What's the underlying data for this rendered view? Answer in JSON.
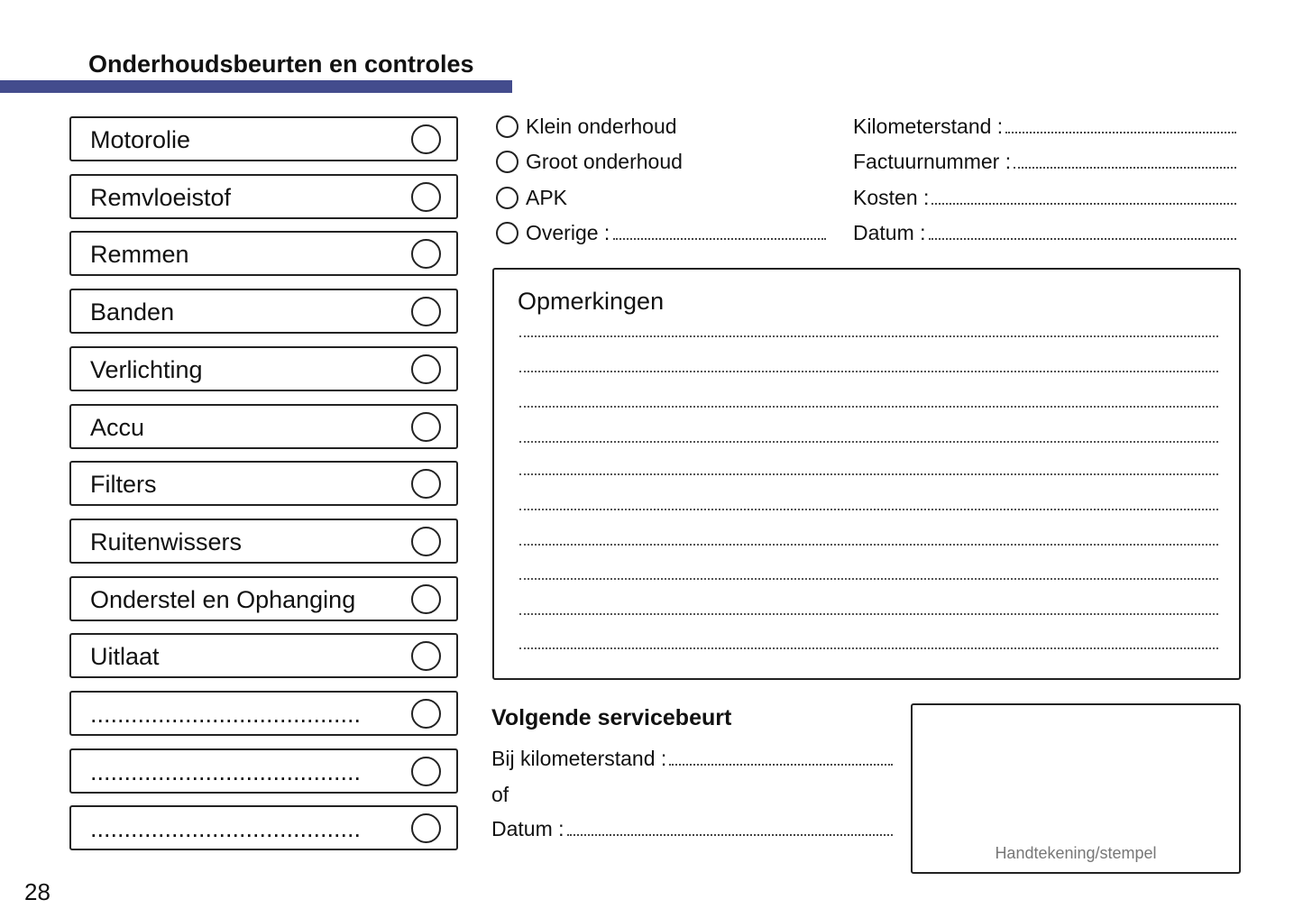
{
  "title": "Onderhoudsbeurten en controles",
  "accent_color": "#434c8d",
  "checklist": [
    "Motorolie",
    "Remvloeistof",
    "Remmen",
    "Banden",
    "Verlichting",
    "Accu",
    "Filters",
    "Ruitenwissers",
    "Onderstel en Ophanging",
    "Uitlaat",
    "........................................",
    "........................................",
    "........................................"
  ],
  "service_types": [
    "Klein onderhoud",
    "Groot onderhoud",
    "APK",
    "Overige :"
  ],
  "fields": [
    "Kilometerstand :",
    "Factuurnummer :",
    "Kosten :",
    "Datum :"
  ],
  "notes": {
    "title": "Opmerkingen"
  },
  "next_service": {
    "title": "Volgende servicebeurt",
    "km_label": "Bij kilometerstand :",
    "or_label": "of",
    "date_label": "Datum :"
  },
  "signature_label": "Handtekening/stempel",
  "page_number": "28"
}
